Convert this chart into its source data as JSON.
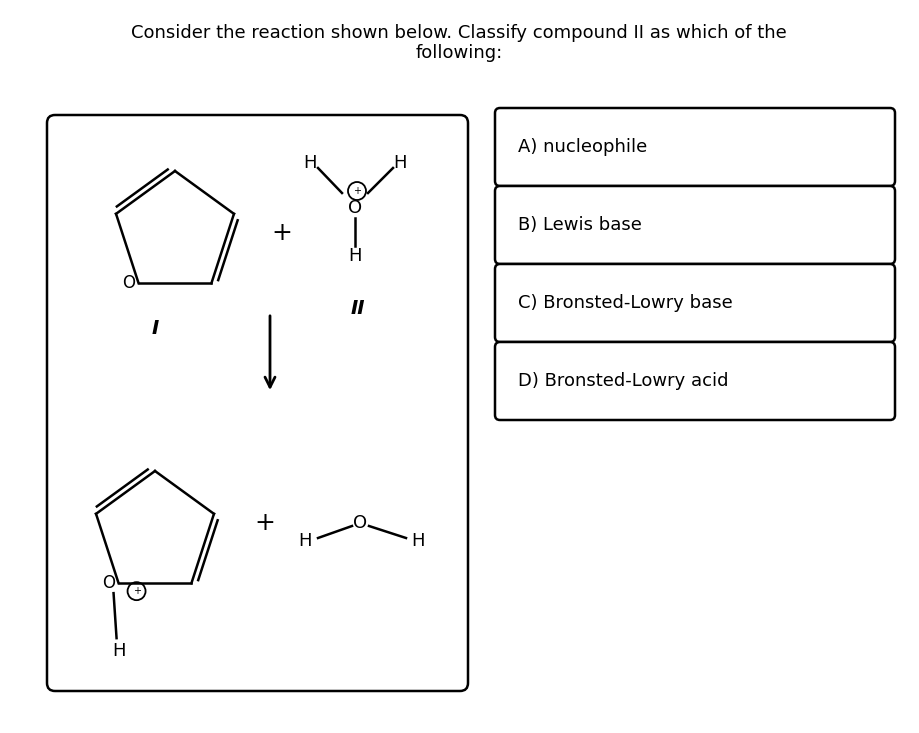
{
  "title_line1": "Consider the reaction shown below. Classify compound II as which of the",
  "title_line2": "following:",
  "background_color": "#ffffff",
  "choices": [
    "A) nucleophile",
    "B) Lewis base",
    "C) Bronsted-Lowry base",
    "D) Bronsted-Lowry acid"
  ],
  "font_size_title": 13,
  "font_size_choice": 13,
  "font_size_atom": 13,
  "font_size_label": 13
}
